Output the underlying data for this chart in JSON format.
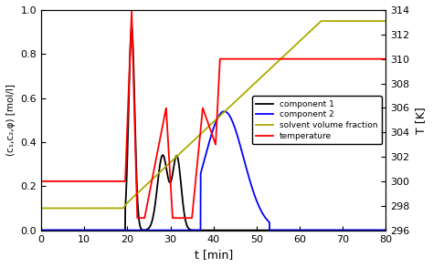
{
  "xlabel": "t [min]",
  "ylabel_left": "(c₁,c₂,φ) [mol/l]",
  "ylabel_right": "T [K]",
  "xlim": [
    0,
    80
  ],
  "ylim_left": [
    0,
    1.0
  ],
  "ylim_right": [
    296,
    314
  ],
  "xticks": [
    0,
    10,
    20,
    30,
    40,
    50,
    60,
    70,
    80
  ],
  "yticks_left": [
    0,
    0.2,
    0.4,
    0.6,
    0.8,
    1.0
  ],
  "yticks_right": [
    296,
    298,
    300,
    302,
    304,
    306,
    308,
    310,
    312,
    314
  ],
  "legend_labels": [
    "component 1",
    "component 2",
    "solvent volume fraction",
    "temperature"
  ],
  "bg_color": "#ffffff",
  "axes_bg": "#ffffff",
  "comp1_color": "black",
  "comp2_color": "blue",
  "solvent_color": "#aaaa00",
  "temp_color": "red"
}
